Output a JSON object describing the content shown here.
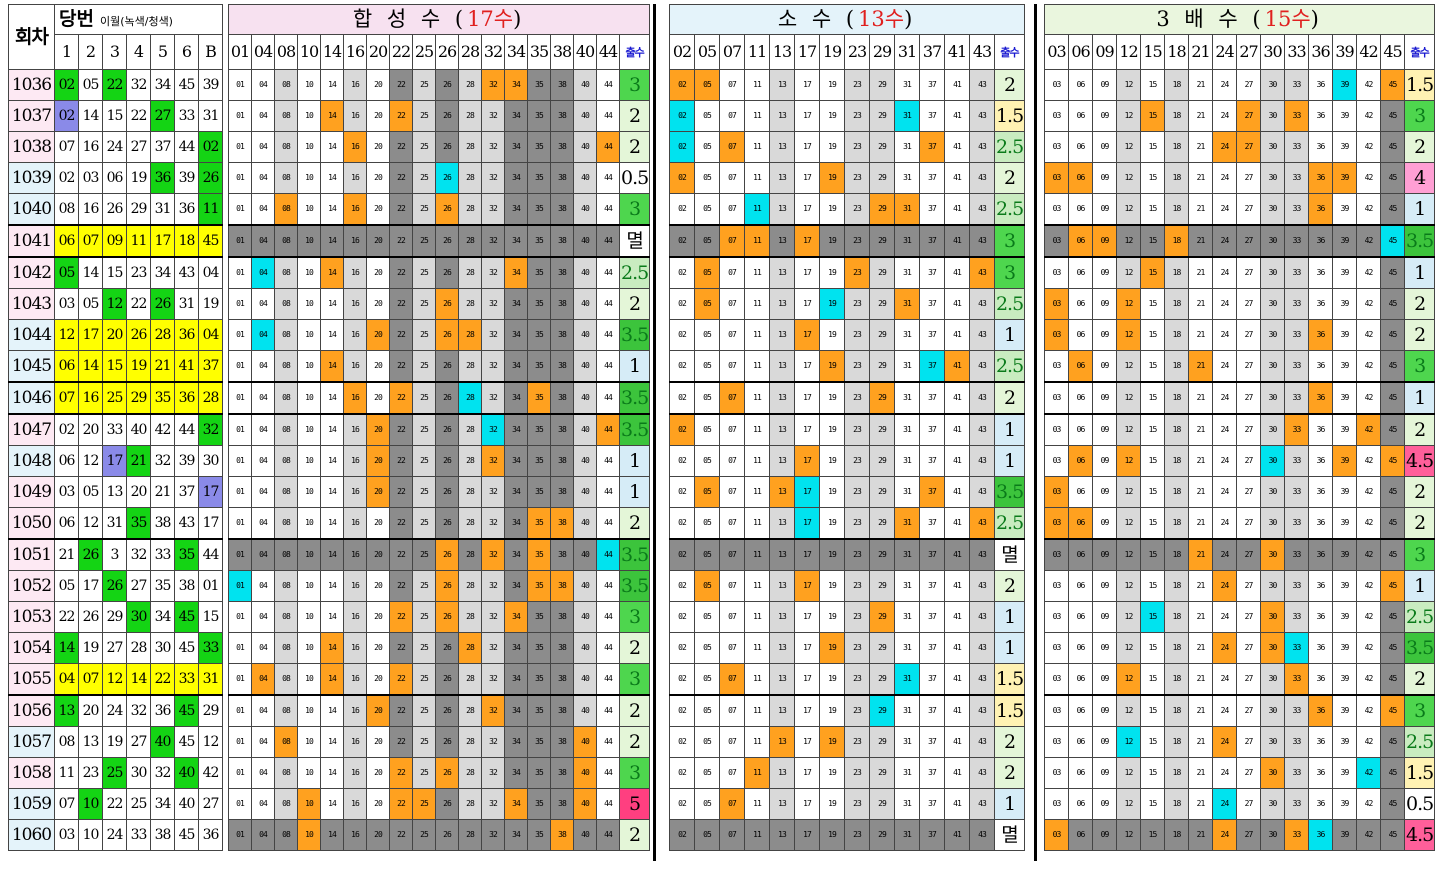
{
  "header": {
    "round_label": "회차",
    "winning_label": "당번",
    "winning_note": "이월(녹색/청색)",
    "winning_cols": [
      "1",
      "2",
      "3",
      "4",
      "5",
      "6",
      "B"
    ],
    "count_label": "출수"
  },
  "sections": [
    {
      "id": "hapsung",
      "title_prefix": "합 성 수 (",
      "title_count": "17수",
      "title_suffix": ")",
      "numbers": [
        "01",
        "04",
        "08",
        "10",
        "14",
        "16",
        "20",
        "22",
        "25",
        "26",
        "28",
        "32",
        "34",
        "35",
        "38",
        "40",
        "44"
      ]
    },
    {
      "id": "sosu",
      "title_prefix": "소 수 (",
      "title_count": "13수",
      "title_suffix": ")",
      "numbers": [
        "02",
        "05",
        "07",
        "11",
        "13",
        "17",
        "19",
        "23",
        "29",
        "31",
        "37",
        "41",
        "43"
      ]
    },
    {
      "id": "sambae",
      "title_prefix": "3 배 수 (",
      "title_count": "15수",
      "title_suffix": ")",
      "numbers": [
        "03",
        "06",
        "09",
        "12",
        "15",
        "18",
        "21",
        "24",
        "27",
        "30",
        "33",
        "36",
        "39",
        "42",
        "45"
      ]
    }
  ],
  "colors": {
    "orange": "#ffa11f",
    "cyan": "#00e3ef",
    "green": "#14d414",
    "purple": "#8a8ae8",
    "yellow": "#ffff00",
    "dark_gray": "#8c8c8c",
    "light_gray": "#d9d9d9",
    "title_red": "#e0201f"
  },
  "rows": [
    {
      "round": "1036",
      "win": [
        "02",
        "05",
        "22",
        "32",
        "34",
        "45",
        "39"
      ],
      "h": "3",
      "s": "2",
      "t": "1.5"
    },
    {
      "round": "1037",
      "win": [
        "02",
        "14",
        "15",
        "22",
        "27",
        "33",
        "31"
      ],
      "h": "2",
      "s": "1.5",
      "t": "3"
    },
    {
      "round": "1038",
      "win": [
        "07",
        "16",
        "24",
        "27",
        "37",
        "44",
        "02"
      ],
      "h": "2",
      "s": "2.5",
      "t": "2"
    },
    {
      "round": "1039",
      "win": [
        "02",
        "03",
        "06",
        "19",
        "36",
        "39",
        "26"
      ],
      "h": "0.5",
      "s": "2",
      "t": "4"
    },
    {
      "round": "1040",
      "win": [
        "08",
        "16",
        "26",
        "29",
        "31",
        "36",
        "11"
      ],
      "h": "3",
      "s": "2.5",
      "t": "1"
    },
    {
      "round": "1041",
      "win": [
        "06",
        "07",
        "09",
        "11",
        "17",
        "18",
        "45"
      ],
      "h": "멸",
      "s": "3",
      "t": "3.5"
    },
    {
      "round": "1042",
      "win": [
        "05",
        "14",
        "15",
        "23",
        "34",
        "43",
        "04"
      ],
      "h": "2.5",
      "s": "3",
      "t": "1"
    },
    {
      "round": "1043",
      "win": [
        "03",
        "05",
        "12",
        "22",
        "26",
        "31",
        "19"
      ],
      "h": "2",
      "s": "2.5",
      "t": "2"
    },
    {
      "round": "1044",
      "win": [
        "12",
        "17",
        "20",
        "26",
        "28",
        "36",
        "04"
      ],
      "h": "3.5",
      "s": "1",
      "t": "2"
    },
    {
      "round": "1045",
      "win": [
        "06",
        "14",
        "15",
        "19",
        "21",
        "41",
        "37"
      ],
      "h": "1",
      "s": "2.5",
      "t": "3"
    },
    {
      "round": "1046",
      "win": [
        "07",
        "16",
        "25",
        "29",
        "35",
        "36",
        "28"
      ],
      "h": "3.5",
      "s": "2",
      "t": "1"
    },
    {
      "round": "1047",
      "win": [
        "02",
        "20",
        "33",
        "40",
        "42",
        "44",
        "32"
      ],
      "h": "3.5",
      "s": "1",
      "t": "2"
    },
    {
      "round": "1048",
      "win": [
        "06",
        "12",
        "17",
        "21",
        "32",
        "39",
        "30"
      ],
      "h": "1",
      "s": "1",
      "t": "4.5"
    },
    {
      "round": "1049",
      "win": [
        "03",
        "05",
        "13",
        "20",
        "21",
        "37",
        "17"
      ],
      "h": "1",
      "s": "3.5",
      "t": "2"
    },
    {
      "round": "1050",
      "win": [
        "06",
        "12",
        "31",
        "35",
        "38",
        "43",
        "17"
      ],
      "h": "2",
      "s": "2.5",
      "t": "2"
    },
    {
      "round": "1051",
      "win": [
        "21",
        "26",
        "3",
        "32",
        "33",
        "35",
        "44"
      ],
      "h": "3.5",
      "s": "멸",
      "t": "3"
    },
    {
      "round": "1052",
      "win": [
        "05",
        "17",
        "26",
        "27",
        "35",
        "38",
        "01"
      ],
      "h": "3.5",
      "s": "2",
      "t": "1"
    },
    {
      "round": "1053",
      "win": [
        "22",
        "26",
        "29",
        "30",
        "34",
        "45",
        "15"
      ],
      "h": "3",
      "s": "1",
      "t": "2.5"
    },
    {
      "round": "1054",
      "win": [
        "14",
        "19",
        "27",
        "28",
        "30",
        "45",
        "33"
      ],
      "h": "2",
      "s": "1",
      "t": "3.5"
    },
    {
      "round": "1055",
      "win": [
        "04",
        "07",
        "12",
        "14",
        "22",
        "33",
        "31"
      ],
      "h": "3",
      "s": "1.5",
      "t": "2"
    },
    {
      "round": "1056",
      "win": [
        "13",
        "20",
        "24",
        "32",
        "36",
        "45",
        "29"
      ],
      "h": "2",
      "s": "1.5",
      "t": "3"
    },
    {
      "round": "1057",
      "win": [
        "08",
        "13",
        "19",
        "27",
        "40",
        "45",
        "12"
      ],
      "h": "2",
      "s": "2",
      "t": "2.5"
    },
    {
      "round": "1058",
      "win": [
        "11",
        "23",
        "25",
        "30",
        "32",
        "40",
        "42"
      ],
      "h": "3",
      "s": "2",
      "t": "1.5"
    },
    {
      "round": "1059",
      "win": [
        "07",
        "10",
        "22",
        "25",
        "34",
        "40",
        "27"
      ],
      "h": "5",
      "s": "1",
      "t": "0.5"
    },
    {
      "round": "1060",
      "win": [
        "03",
        "10",
        "24",
        "33",
        "38",
        "45",
        "36"
      ],
      "h": "2",
      "s": "멸",
      "t": "4.5"
    }
  ]
}
